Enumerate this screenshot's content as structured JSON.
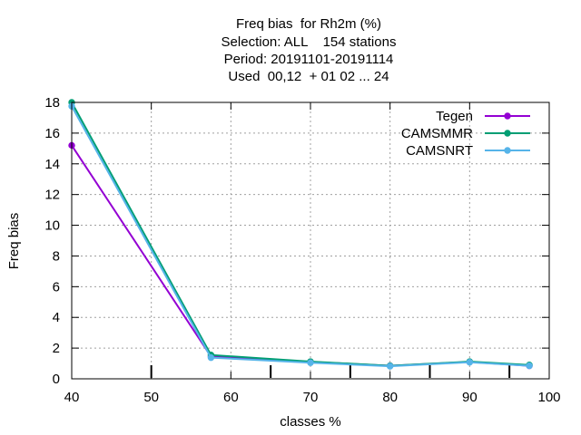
{
  "chart_data": {
    "type": "line",
    "title_lines": [
      "Freq bias  for Rh2m (%)",
      "Selection: ALL    154 stations",
      "Period: 20191101-20191114",
      "Used  00,12  + 01 02 ... 24"
    ],
    "xlabel": "classes %",
    "ylabel": "Freq bias",
    "xlim": [
      40,
      100
    ],
    "ylim": [
      0,
      18
    ],
    "xticks": [
      40,
      50,
      60,
      70,
      80,
      90,
      100
    ],
    "yticks": [
      0,
      2,
      4,
      6,
      8,
      10,
      12,
      14,
      16,
      18
    ],
    "grid": true,
    "legend_position": "top-right",
    "series": [
      {
        "name": "Tegen",
        "color": "#9400d3",
        "x": [
          40,
          57.5,
          70,
          80,
          90,
          97.5
        ],
        "y": [
          15.2,
          1.45,
          1.1,
          0.85,
          1.1,
          0.85
        ]
      },
      {
        "name": "CAMSMMR",
        "color": "#009e73",
        "x": [
          40,
          57.5,
          70,
          80,
          90,
          97.5
        ],
        "y": [
          18.0,
          1.55,
          1.12,
          0.85,
          1.12,
          0.9
        ]
      },
      {
        "name": "CAMSNRT",
        "color": "#56b4e9",
        "x": [
          40,
          57.5,
          70,
          80,
          90,
          97.5
        ],
        "y": [
          17.75,
          1.38,
          1.05,
          0.82,
          1.08,
          0.85
        ]
      }
    ]
  }
}
